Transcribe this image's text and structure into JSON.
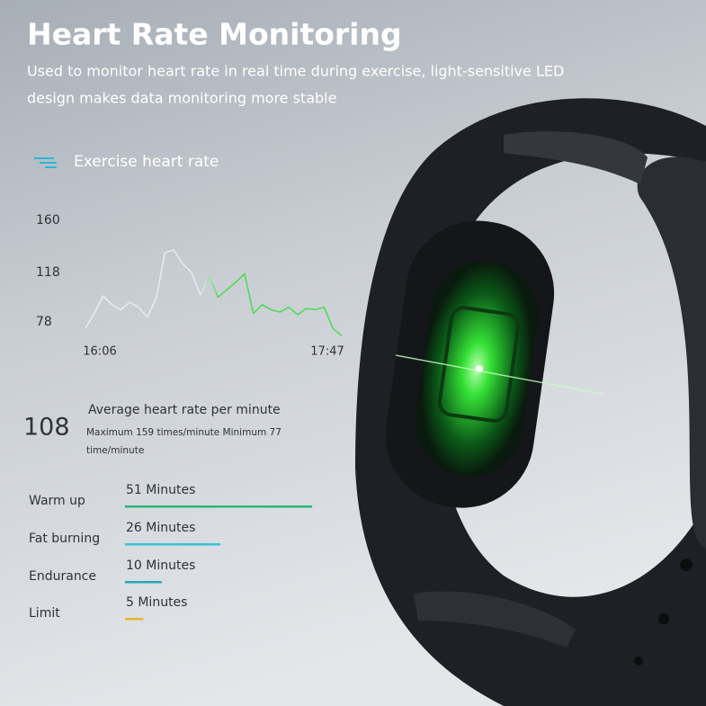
{
  "title": "Heart Rate Monitoring",
  "subtitle": [
    "Used to monitor heart rate in real time during exercise, light-sensitive LED",
    "design makes data monitoring more stable"
  ],
  "chart_data": {
    "type": "line",
    "categories": [
      "16:06",
      null,
      null,
      null,
      null,
      null,
      null,
      null,
      null,
      null,
      null,
      null,
      null,
      null,
      null,
      null,
      null,
      null,
      null,
      null,
      null,
      null,
      null,
      null,
      null,
      null,
      null,
      null,
      null,
      "17:47"
    ],
    "series": [
      {
        "name": "Exercise heart rate",
        "color": "#4fd94f",
        "values": [
          73,
          85,
          99,
          92,
          88,
          94,
          90,
          82,
          97,
          134,
          136,
          125,
          118,
          100,
          115,
          98,
          104,
          110,
          117,
          85,
          92,
          88,
          86,
          90,
          84,
          89,
          88,
          90,
          73,
          67
        ]
      }
    ],
    "ylim": [
      60,
      165
    ],
    "yticks": [
      78,
      118,
      160
    ]
  },
  "average": {
    "value": 108,
    "label": "Average heart rate per minute",
    "detail": [
      "Maximum 159 times/minute Minimum 77",
      "time/minute"
    ]
  },
  "zones": [
    {
      "name": "Warm up",
      "value": 51,
      "value_label": "51 Minutes",
      "color": "#2fb37a"
    },
    {
      "name": "Fat burning",
      "value": 26,
      "value_label": "26 Minutes",
      "color": "#35c3d8"
    },
    {
      "name": "Endurance",
      "value": 10,
      "value_label": "10 Minutes",
      "color": "#2aa6b8"
    },
    {
      "name": "Limit",
      "value": 5,
      "value_label": "5 Minutes",
      "color": "#e8b52a"
    }
  ]
}
